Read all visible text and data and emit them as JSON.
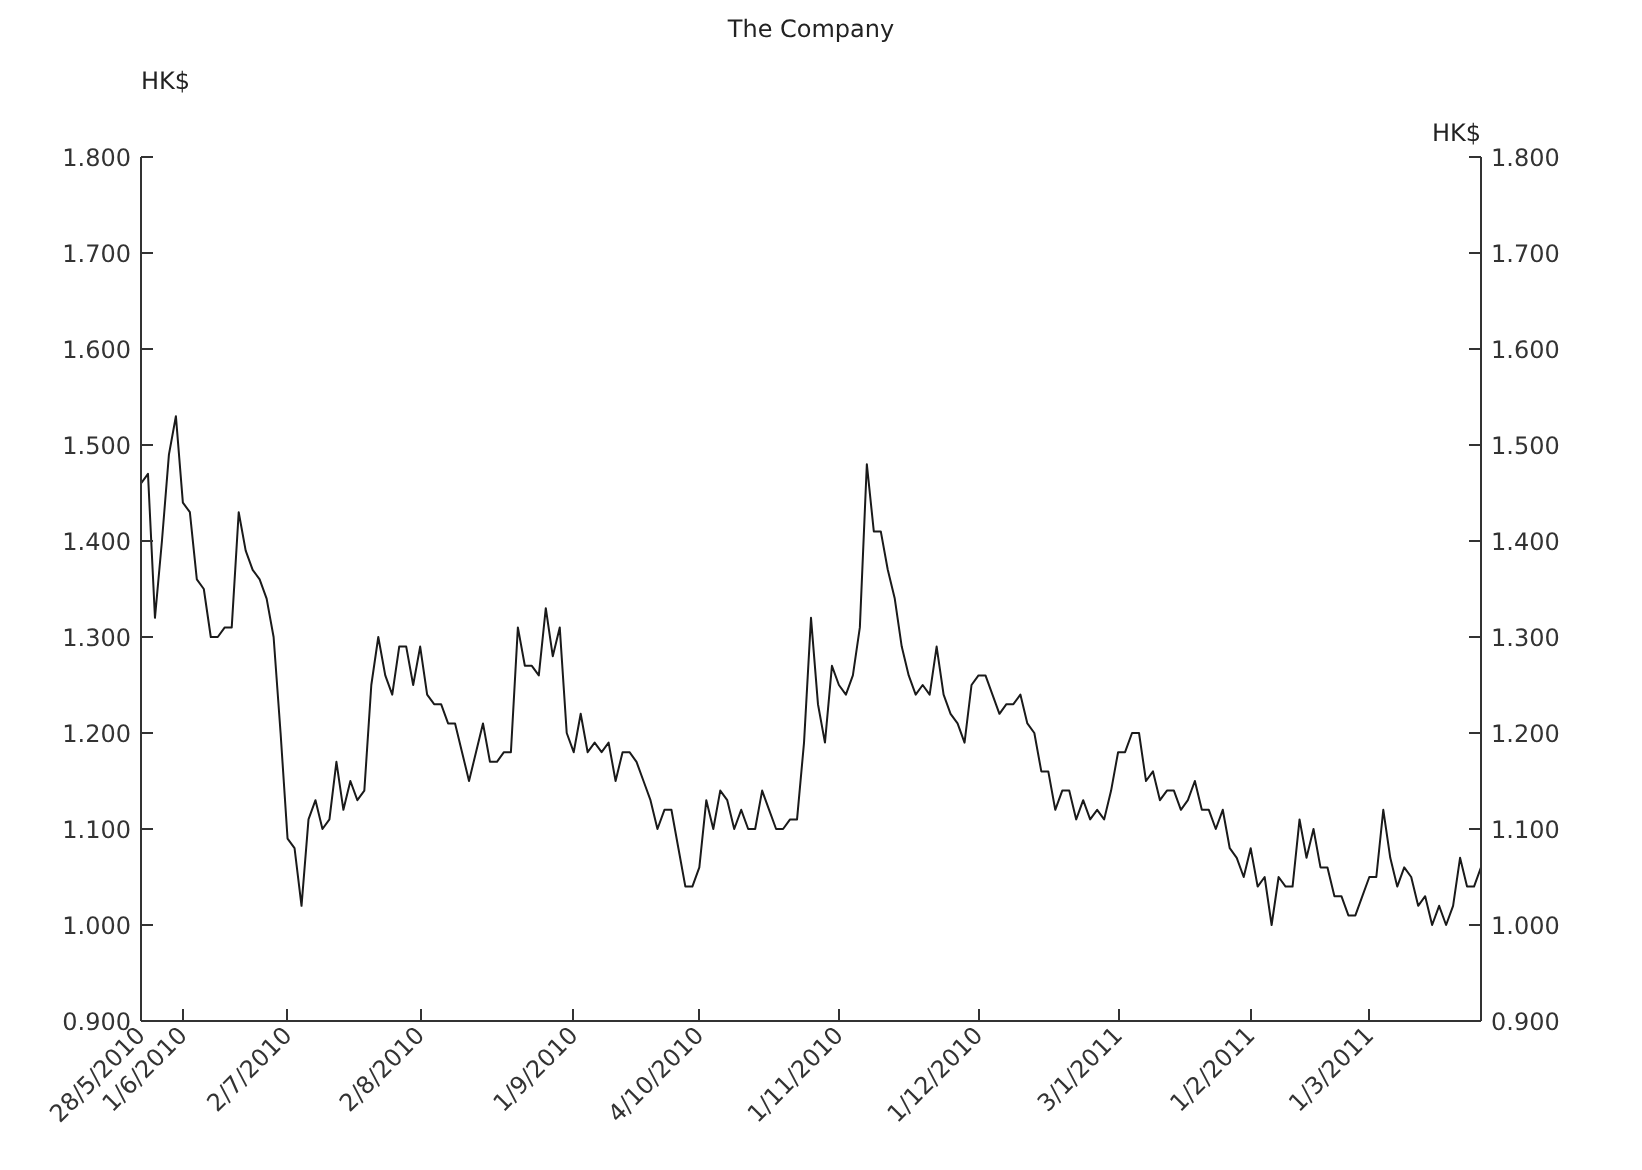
{
  "chart_data": {
    "type": "line",
    "title": "The Company",
    "ylabel": "HK$",
    "y2label": "HK$",
    "categories": [
      "28/5/2010",
      null,
      null,
      null,
      null,
      null,
      "1/6/2010",
      null,
      null,
      null,
      null,
      null,
      null,
      null,
      null,
      null,
      null,
      null,
      null,
      null,
      null,
      "2/7/2010",
      null,
      null,
      null,
      null,
      null,
      null,
      null,
      null,
      null,
      null,
      null,
      null,
      null,
      null,
      null,
      null,
      null,
      null,
      "2/8/2010",
      null,
      null,
      null,
      null,
      null,
      null,
      null,
      null,
      null,
      null,
      null,
      null,
      null,
      null,
      null,
      null,
      null,
      null,
      null,
      null,
      null,
      "1/9/2010",
      null,
      null,
      null,
      null,
      null,
      null,
      null,
      null,
      null,
      null,
      null,
      null,
      null,
      null,
      null,
      null,
      null,
      "4/10/2010",
      null,
      null,
      null,
      null,
      null,
      null,
      null,
      null,
      null,
      null,
      null,
      null,
      null,
      null,
      null,
      null,
      null,
      null,
      null,
      "1/11/2010",
      null,
      null,
      null,
      null,
      null,
      null,
      null,
      null,
      null,
      null,
      null,
      null,
      null,
      null,
      null,
      null,
      null,
      null,
      null,
      "1/12/2010",
      null,
      null,
      null,
      null,
      null,
      null,
      null,
      null,
      null,
      null,
      null,
      null,
      null,
      null,
      null,
      null,
      null,
      null,
      null,
      "3/1/2011",
      null,
      null,
      null,
      null,
      null,
      null,
      null,
      null,
      null,
      null,
      null,
      null,
      null,
      null,
      null,
      null,
      null,
      null,
      "1/2/2011",
      null,
      null,
      null,
      null,
      null,
      null,
      null,
      null,
      null,
      null,
      null,
      null,
      null,
      null,
      null,
      null,
      "1/3/2011",
      null,
      null,
      null,
      null,
      null,
      null,
      null,
      null,
      null,
      null,
      null,
      null,
      null,
      null,
      null,
      null
    ],
    "values": [
      1.46,
      1.47,
      1.32,
      1.4,
      1.49,
      1.53,
      1.44,
      1.43,
      1.36,
      1.35,
      1.3,
      1.3,
      1.31,
      1.31,
      1.43,
      1.39,
      1.37,
      1.36,
      1.34,
      1.3,
      1.2,
      1.09,
      1.08,
      1.02,
      1.11,
      1.13,
      1.1,
      1.11,
      1.17,
      1.12,
      1.15,
      1.13,
      1.14,
      1.25,
      1.3,
      1.26,
      1.24,
      1.29,
      1.29,
      1.25,
      1.29,
      1.24,
      1.23,
      1.23,
      1.21,
      1.21,
      1.18,
      1.15,
      1.18,
      1.21,
      1.17,
      1.17,
      1.18,
      1.18,
      1.31,
      1.27,
      1.27,
      1.26,
      1.33,
      1.28,
      1.31,
      1.2,
      1.18,
      1.22,
      1.18,
      1.19,
      1.18,
      1.19,
      1.15,
      1.18,
      1.18,
      1.17,
      1.15,
      1.13,
      1.1,
      1.12,
      1.12,
      1.08,
      1.04,
      1.04,
      1.06,
      1.13,
      1.1,
      1.14,
      1.13,
      1.1,
      1.12,
      1.1,
      1.1,
      1.14,
      1.12,
      1.1,
      1.1,
      1.11,
      1.11,
      1.19,
      1.32,
      1.23,
      1.19,
      1.27,
      1.25,
      1.24,
      1.26,
      1.31,
      1.48,
      1.41,
      1.41,
      1.37,
      1.34,
      1.29,
      1.26,
      1.24,
      1.25,
      1.24,
      1.29,
      1.24,
      1.22,
      1.21,
      1.19,
      1.25,
      1.26,
      1.26,
      1.24,
      1.22,
      1.23,
      1.23,
      1.24,
      1.21,
      1.2,
      1.16,
      1.16,
      1.12,
      1.14,
      1.14,
      1.11,
      1.13,
      1.11,
      1.12,
      1.11,
      1.14,
      1.18,
      1.18,
      1.2,
      1.2,
      1.15,
      1.16,
      1.13,
      1.14,
      1.14,
      1.12,
      1.13,
      1.15,
      1.12,
      1.12,
      1.1,
      1.12,
      1.08,
      1.07,
      1.05,
      1.08,
      1.04,
      1.05,
      1.0,
      1.05,
      1.04,
      1.04,
      1.11,
      1.07,
      1.1,
      1.06,
      1.06,
      1.03,
      1.03,
      1.01,
      1.01,
      1.03,
      1.05,
      1.05,
      1.12,
      1.07,
      1.04,
      1.06,
      1.05,
      1.02,
      1.03,
      1.0,
      1.02,
      1.0,
      1.02,
      1.07,
      1.04,
      1.04,
      1.06
    ],
    "color": "#1a1a1a",
    "ylim": [
      0.9,
      1.8
    ],
    "yticks": [
      {
        "value": 0.9,
        "label": "0.900"
      },
      {
        "value": 1.0,
        "label": "1.000"
      },
      {
        "value": 1.1,
        "label": "1.100"
      },
      {
        "value": 1.2,
        "label": "1.200"
      },
      {
        "value": 1.3,
        "label": "1.300"
      },
      {
        "value": 1.4,
        "label": "1.400"
      },
      {
        "value": 1.5,
        "label": "1.500"
      },
      {
        "value": 1.6,
        "label": "1.600"
      },
      {
        "value": 1.7,
        "label": "1.700"
      },
      {
        "value": 1.8,
        "label": "1.800"
      }
    ],
    "y2lim": [
      0.9,
      1.8
    ],
    "y2ticks": [
      {
        "value": 0.9,
        "label": "0.900"
      },
      {
        "value": 1.0,
        "label": "1.000"
      },
      {
        "value": 1.1,
        "label": "1.100"
      },
      {
        "value": 1.2,
        "label": "1.200"
      },
      {
        "value": 1.3,
        "label": "1.300"
      },
      {
        "value": 1.4,
        "label": "1.400"
      },
      {
        "value": 1.5,
        "label": "1.500"
      },
      {
        "value": 1.6,
        "label": "1.600"
      },
      {
        "value": 1.7,
        "label": "1.700"
      },
      {
        "value": 1.8,
        "label": "1.800"
      }
    ],
    "grid": false
  }
}
